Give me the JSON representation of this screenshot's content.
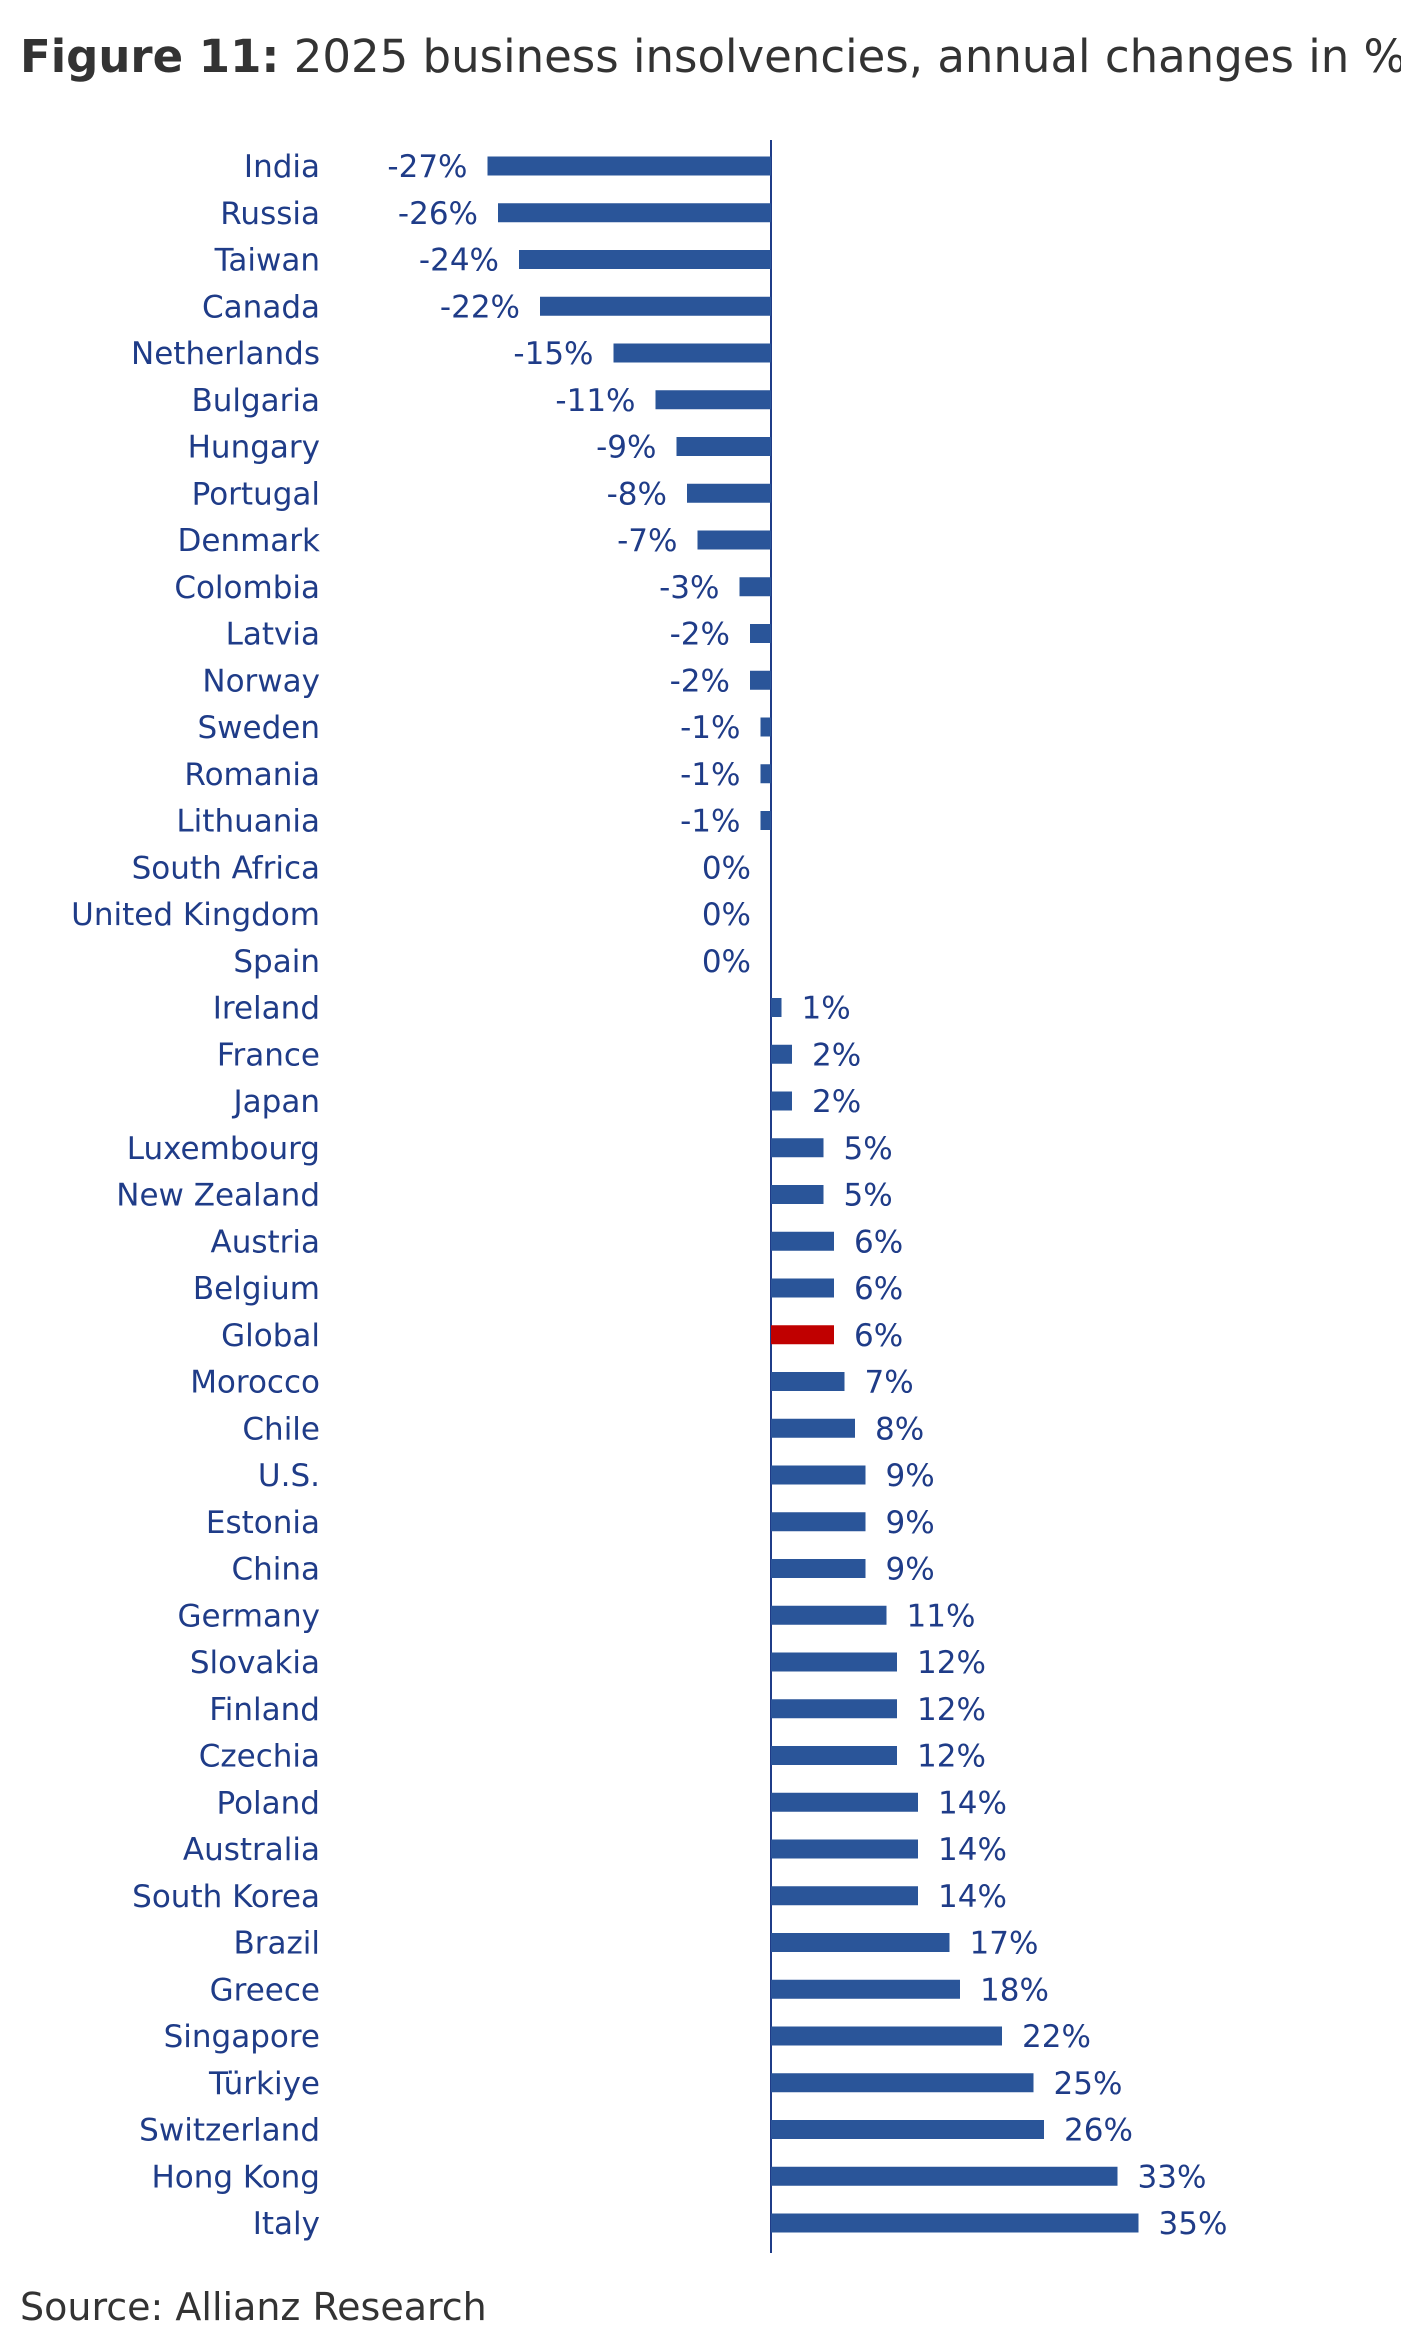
{
  "title_prefix": "Figure 11:",
  "title_text": "2025 business insolvencies, annual changes in %",
  "source": "Source: Allianz Research",
  "colors": {
    "bar": "#2a5599",
    "highlight": "#c00000",
    "text": "#1f3c88",
    "axis": "#1f3c88"
  },
  "chart_data": {
    "type": "bar",
    "orientation": "horizontal",
    "title": "2025 business insolvencies, annual changes in %",
    "grid": false,
    "highlight_category": "Global",
    "xlim": [
      -30,
      37
    ],
    "categories": [
      "India",
      "Russia",
      "Taiwan",
      "Canada",
      "Netherlands",
      "Bulgaria",
      "Hungary",
      "Portugal",
      "Denmark",
      "Colombia",
      "Latvia",
      "Norway",
      "Sweden",
      "Romania",
      "Lithuania",
      "South Africa",
      "United Kingdom",
      "Spain",
      "Ireland",
      "France",
      "Japan",
      "Luxembourg",
      "New Zealand",
      "Austria",
      "Belgium",
      "Global",
      "Morocco",
      "Chile",
      "U.S.",
      "Estonia",
      "China",
      "Germany",
      "Slovakia",
      "Finland",
      "Czechia",
      "Poland",
      "Australia",
      "South Korea",
      "Brazil",
      "Greece",
      "Singapore",
      "Türkiye",
      "Switzerland",
      "Hong Kong",
      "Italy"
    ],
    "values": [
      -27,
      -26,
      -24,
      -22,
      -15,
      -11,
      -9,
      -8,
      -7,
      -3,
      -2,
      -2,
      -1,
      -1,
      -1,
      0,
      0,
      0,
      1,
      2,
      2,
      5,
      5,
      6,
      6,
      6,
      7,
      8,
      9,
      9,
      9,
      11,
      12,
      12,
      12,
      14,
      14,
      14,
      17,
      18,
      22,
      25,
      26,
      33,
      35
    ],
    "value_labels": [
      "-27%",
      "-26%",
      "-24%",
      "-22%",
      "-15%",
      "-11%",
      "-9%",
      "-8%",
      "-7%",
      "-3%",
      "-2%",
      "-2%",
      "-1%",
      "-1%",
      "-1%",
      "0%",
      "0%",
      "0%",
      "1%",
      "2%",
      "2%",
      "5%",
      "5%",
      "6%",
      "6%",
      "6%",
      "7%",
      "8%",
      "9%",
      "9%",
      "9%",
      "11%",
      "12%",
      "12%",
      "12%",
      "14%",
      "14%",
      "14%",
      "17%",
      "18%",
      "22%",
      "25%",
      "26%",
      "33%",
      "35%"
    ]
  }
}
